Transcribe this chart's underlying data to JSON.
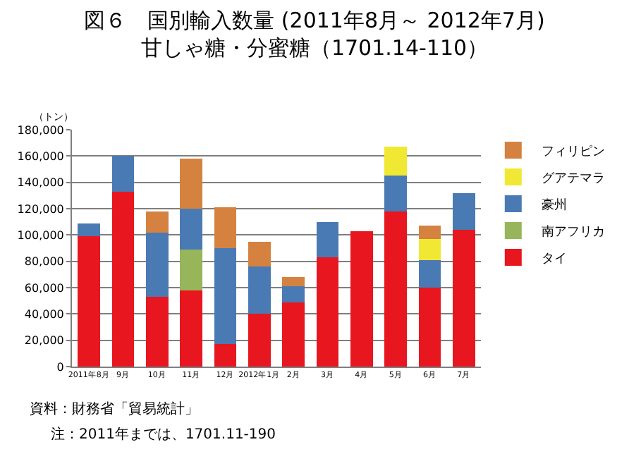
{
  "chart_data": {
    "type": "bar",
    "stacked": true,
    "title": "図６　国別輸入数量 (2011年8月～ 2012年7月)\n甘しゃ糖・分蜜糖（1701.14-110）",
    "ylabel": "（トン）",
    "categories": [
      "2011年8月",
      "9月",
      "10月",
      "11月",
      "12月",
      "2012年1月",
      "2月",
      "3月",
      "4月",
      "5月",
      "6月",
      "7月"
    ],
    "series": [
      {
        "name": "タイ",
        "color": "#e8161f",
        "values": [
          99000,
          133000,
          53000,
          58000,
          17000,
          40000,
          49000,
          83000,
          103000,
          118000,
          60000,
          104000
        ]
      },
      {
        "name": "南アフリカ",
        "color": "#97b55a",
        "values": [
          null,
          null,
          null,
          31000,
          null,
          null,
          null,
          null,
          null,
          null,
          null,
          null
        ]
      },
      {
        "name": "豪州",
        "color": "#4a7ab3",
        "values": [
          10000,
          27000,
          49000,
          31000,
          73000,
          36000,
          12000,
          27000,
          null,
          27000,
          21000,
          28000
        ]
      },
      {
        "name": "グアテマラ",
        "color": "#f0e832",
        "values": [
          null,
          null,
          null,
          null,
          null,
          null,
          null,
          null,
          null,
          22000,
          16000,
          null
        ]
      },
      {
        "name": "フィリピン",
        "color": "#d58240",
        "values": [
          null,
          null,
          16000,
          38000,
          31000,
          19000,
          7000,
          null,
          null,
          null,
          10000,
          null
        ]
      }
    ],
    "ylim": [
      0,
      180000
    ],
    "yticks": [
      {
        "value": 0,
        "label": "0"
      },
      {
        "value": 20000,
        "label": "20,000"
      },
      {
        "value": 40000,
        "label": "40,000"
      },
      {
        "value": 60000,
        "label": "60,000"
      },
      {
        "value": 80000,
        "label": "80,000"
      },
      {
        "value": 100000,
        "label": "100,000"
      },
      {
        "value": 120000,
        "label": "120,000"
      },
      {
        "value": 140000,
        "label": "140,000"
      },
      {
        "value": 160000,
        "label": "160,000"
      },
      {
        "value": 180000,
        "label": "180,000"
      }
    ],
    "grid": "y",
    "legend": "right",
    "annotations": [
      "資料：財務省「貿易統計」",
      "注：2011年までは、1701.11-190"
    ]
  }
}
